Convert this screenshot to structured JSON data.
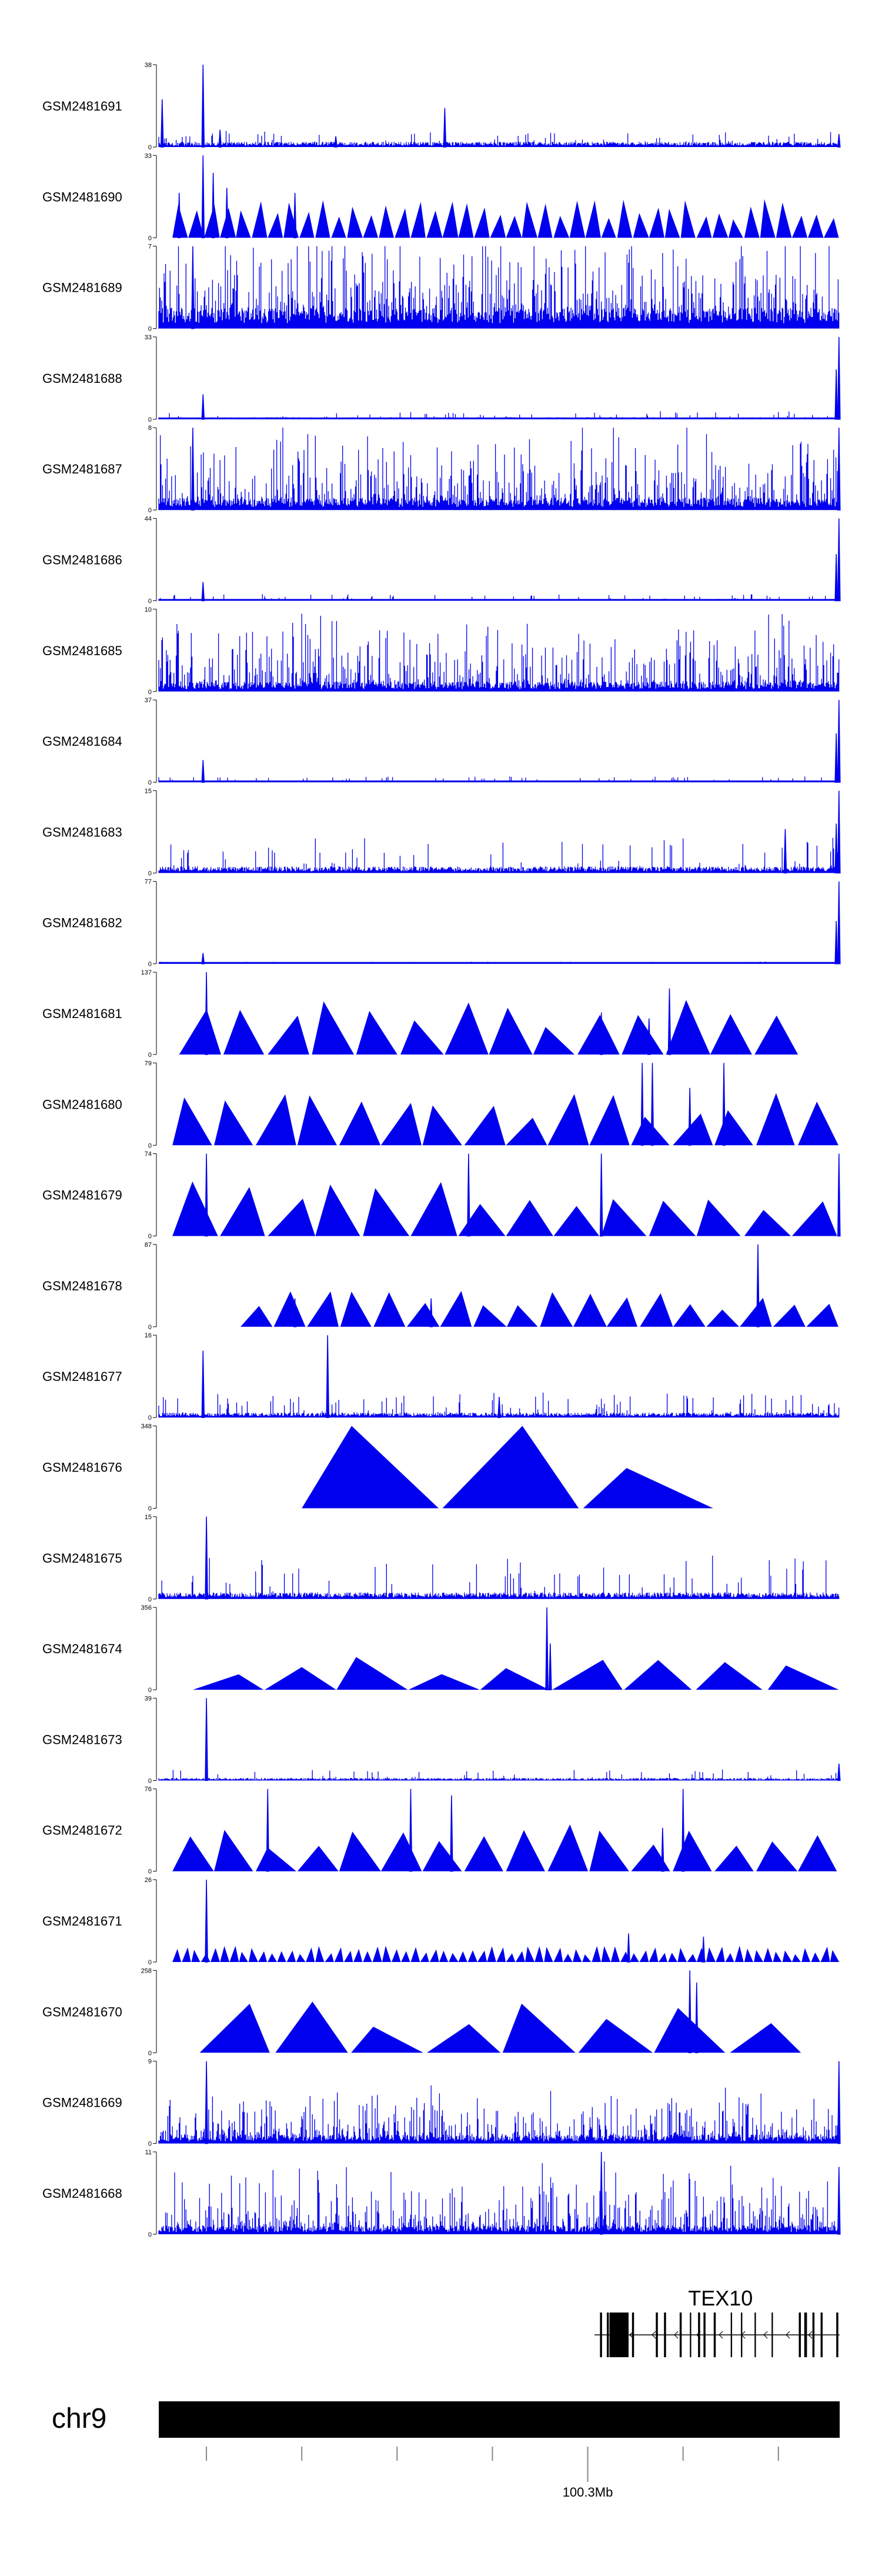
{
  "chart_data": {
    "type": "area",
    "title": "",
    "signal_color": "#0000ee",
    "tracks": [
      {
        "sample": "GSM2481691",
        "ymax": "38",
        "ymin": "0",
        "peak_max": 38,
        "mode": "spiky",
        "base": 2,
        "noise": 4,
        "spikes": [
          [
            0.065,
            38
          ],
          [
            0.005,
            22
          ],
          [
            0.42,
            18
          ],
          [
            0.09,
            8
          ],
          [
            0.26,
            5
          ],
          [
            0.999,
            6
          ]
        ],
        "baseline": false
      },
      {
        "sample": "GSM2481690",
        "ymax": "33",
        "ymin": "0",
        "peak_max": 33,
        "mode": "tri",
        "tri_count": 42,
        "tri_height": 12,
        "spikes": [
          [
            0.065,
            33
          ],
          [
            0.08,
            26
          ],
          [
            0.03,
            18
          ],
          [
            0.1,
            20
          ],
          [
            0.2,
            18
          ]
        ],
        "baseline": false
      },
      {
        "sample": "GSM2481689",
        "ymax": "7",
        "ymin": "0",
        "peak_max": 7,
        "mode": "dense",
        "base": 1.5,
        "noise": 5.5,
        "spikes": [
          [
            0.05,
            7
          ]
        ],
        "baseline": false
      },
      {
        "sample": "GSM2481688",
        "ymax": "33",
        "ymin": "0",
        "peak_max": 33,
        "mode": "spiky",
        "base": 0.7,
        "noise": 1.8,
        "spikes": [
          [
            0.065,
            10
          ],
          [
            0.999,
            33
          ],
          [
            0.995,
            20
          ]
        ],
        "baseline": true
      },
      {
        "sample": "GSM2481687",
        "ymax": "8",
        "ymin": "0",
        "peak_max": 8,
        "mode": "dense",
        "base": 1.0,
        "noise": 5.0,
        "spikes": [
          [
            0.05,
            8
          ],
          [
            0.999,
            8
          ]
        ],
        "baseline": false
      },
      {
        "sample": "GSM2481686",
        "ymax": "44",
        "ymin": "0",
        "peak_max": 44,
        "mode": "spiky",
        "base": 0.8,
        "noise": 2.0,
        "spikes": [
          [
            0.065,
            10
          ],
          [
            0.999,
            44
          ],
          [
            0.995,
            25
          ]
        ],
        "baseline": true
      },
      {
        "sample": "GSM2481685",
        "ymax": "10",
        "ymin": "0",
        "peak_max": 10,
        "mode": "dense",
        "base": 1.0,
        "noise": 6.0,
        "spikes": [],
        "baseline": false
      },
      {
        "sample": "GSM2481684",
        "ymax": "37",
        "ymin": "0",
        "peak_max": 37,
        "mode": "spiky",
        "base": 0.6,
        "noise": 1.5,
        "spikes": [
          [
            0.065,
            10
          ],
          [
            0.999,
            37
          ],
          [
            0.995,
            22
          ]
        ],
        "baseline": true
      },
      {
        "sample": "GSM2481683",
        "ymax": "15",
        "ymin": "0",
        "peak_max": 15,
        "mode": "spiky",
        "base": 1.0,
        "noise": 4.0,
        "spikes": [
          [
            0.92,
            8
          ],
          [
            0.999,
            15
          ],
          [
            0.995,
            9
          ]
        ],
        "baseline": false
      },
      {
        "sample": "GSM2481682",
        "ymax": "77",
        "ymin": "0",
        "peak_max": 77,
        "mode": "spiky",
        "base": 0.4,
        "noise": 1.2,
        "spikes": [
          [
            0.065,
            10
          ],
          [
            0.999,
            77
          ],
          [
            0.995,
            40
          ]
        ],
        "baseline": true
      },
      {
        "sample": "GSM2481681",
        "ymax": "137",
        "ymin": "0",
        "peak_max": 137,
        "mode": "tri",
        "tri_count": 14,
        "tri_height": 75,
        "tri_start": 0.03,
        "tri_end": 0.94,
        "spikes": [
          [
            0.07,
            137
          ],
          [
            0.75,
            110
          ],
          [
            0.72,
            60
          ],
          [
            0.65,
            70
          ]
        ],
        "baseline": false
      },
      {
        "sample": "GSM2481680",
        "ymax": "79",
        "ymin": "0",
        "peak_max": 79,
        "mode": "tri",
        "tri_count": 16,
        "tri_height": 40,
        "spikes": [
          [
            0.71,
            79
          ],
          [
            0.725,
            79
          ],
          [
            0.83,
            79
          ],
          [
            0.78,
            55
          ]
        ],
        "baseline": false
      },
      {
        "sample": "GSM2481679",
        "ymax": "74",
        "ymin": "0",
        "peak_max": 74,
        "mode": "tri",
        "tri_count": 14,
        "tri_height": 38,
        "spikes": [
          [
            0.07,
            74
          ],
          [
            0.455,
            74
          ],
          [
            0.999,
            74
          ],
          [
            0.65,
            74
          ]
        ],
        "baseline": false
      },
      {
        "sample": "GSM2481678",
        "ymax": "87",
        "ymin": "0",
        "peak_max": 87,
        "mode": "tri",
        "tri_count": 18,
        "tri_height": 30,
        "tri_start": 0.12,
        "spikes": [
          [
            0.88,
            87
          ],
          [
            0.4,
            30
          ],
          [
            0.2,
            30
          ]
        ],
        "baseline": false
      },
      {
        "sample": "GSM2481677",
        "ymax": "16",
        "ymin": "0",
        "peak_max": 16,
        "mode": "spiky",
        "base": 0.8,
        "noise": 3.0,
        "spikes": [
          [
            0.065,
            13
          ],
          [
            0.248,
            16
          ],
          [
            0.5,
            4
          ]
        ],
        "baseline": false
      },
      {
        "sample": "GSM2481676",
        "ymax": "348",
        "ymin": "0",
        "peak_max": 348,
        "mode": "tri",
        "tri_count": 3,
        "tri_height": 0,
        "tri_start": 0.21,
        "tri_end": 0.83,
        "tri_peaks": [
          348,
          348,
          170
        ],
        "spikes": [],
        "baseline": false
      },
      {
        "sample": "GSM2481675",
        "ymax": "15",
        "ymin": "0",
        "peak_max": 15,
        "mode": "spiky",
        "base": 1.0,
        "noise": 5.0,
        "spikes": [
          [
            0.07,
            15
          ]
        ],
        "baseline": false
      },
      {
        "sample": "GSM2481674",
        "ymax": "356",
        "ymin": "0",
        "peak_max": 356,
        "mode": "tri",
        "tri_count": 9,
        "tri_height": 110,
        "tri_start": 0.05,
        "spikes": [
          [
            0.57,
            356
          ],
          [
            0.575,
            200
          ]
        ],
        "baseline": false
      },
      {
        "sample": "GSM2481673",
        "ymax": "39",
        "ymin": "0",
        "peak_max": 39,
        "mode": "spiky",
        "base": 1.0,
        "noise": 3.0,
        "spikes": [
          [
            0.07,
            39
          ],
          [
            0.999,
            8
          ]
        ],
        "baseline": false
      },
      {
        "sample": "GSM2481672",
        "ymax": "76",
        "ymin": "0",
        "peak_max": 76,
        "mode": "tri",
        "tri_count": 16,
        "tri_height": 36,
        "spikes": [
          [
            0.16,
            76
          ],
          [
            0.37,
            76
          ],
          [
            0.43,
            70
          ],
          [
            0.77,
            76
          ],
          [
            0.74,
            40
          ]
        ],
        "baseline": false
      },
      {
        "sample": "GSM2481671",
        "ymax": "26",
        "ymin": "0",
        "peak_max": 26,
        "mode": "tri",
        "tri_count": 70,
        "tri_height": 4,
        "spikes": [
          [
            0.07,
            26
          ],
          [
            0.69,
            9
          ],
          [
            0.8,
            8
          ]
        ],
        "baseline": false
      },
      {
        "sample": "GSM2481670",
        "ymax": "258",
        "ymin": "0",
        "peak_max": 258,
        "mode": "tri",
        "tri_count": 8,
        "tri_height": 130,
        "tri_start": 0.06,
        "tri_end": 0.95,
        "spikes": [
          [
            0.78,
            258
          ],
          [
            0.79,
            220
          ]
        ],
        "baseline": false
      },
      {
        "sample": "GSM2481669",
        "ymax": "9",
        "ymin": "0",
        "peak_max": 9,
        "mode": "dense",
        "base": 0.8,
        "noise": 3.5,
        "spikes": [
          [
            0.07,
            9
          ],
          [
            0.999,
            9
          ]
        ],
        "baseline": false
      },
      {
        "sample": "GSM2481668",
        "ymax": "11",
        "ymin": "0",
        "peak_max": 11,
        "mode": "dense",
        "base": 1.0,
        "noise": 6.0,
        "spikes": [
          [
            0.65,
            11
          ],
          [
            0.999,
            9
          ]
        ],
        "baseline": false
      }
    ],
    "gene": {
      "name": "TEX10",
      "strand": "-",
      "start_frac": 0.64,
      "end_frac": 1.0,
      "exons": [
        [
          0.648,
          0.651
        ],
        [
          0.658,
          0.661
        ],
        [
          0.662,
          0.69
        ],
        [
          0.695,
          0.698
        ],
        [
          0.73,
          0.733
        ],
        [
          0.742,
          0.745
        ],
        [
          0.765,
          0.768
        ],
        [
          0.78,
          0.782
        ],
        [
          0.792,
          0.795
        ],
        [
          0.8,
          0.803
        ],
        [
          0.815,
          0.818
        ],
        [
          0.84,
          0.842
        ],
        [
          0.855,
          0.857
        ],
        [
          0.875,
          0.877
        ],
        [
          0.9,
          0.902
        ],
        [
          0.94,
          0.943
        ],
        [
          0.948,
          0.952
        ],
        [
          0.96,
          0.963
        ],
        [
          0.972,
          0.975
        ],
        [
          0.995,
          0.998
        ]
      ],
      "thick_exon": [
        0.662,
        0.69
      ]
    },
    "chromosome": "chr9",
    "scale_label": "100.3Mb",
    "scale_label_frac": 0.63,
    "ruler_tick_fracs": [
      0.07,
      0.21,
      0.35,
      0.49,
      0.63,
      0.77,
      0.91
    ]
  }
}
